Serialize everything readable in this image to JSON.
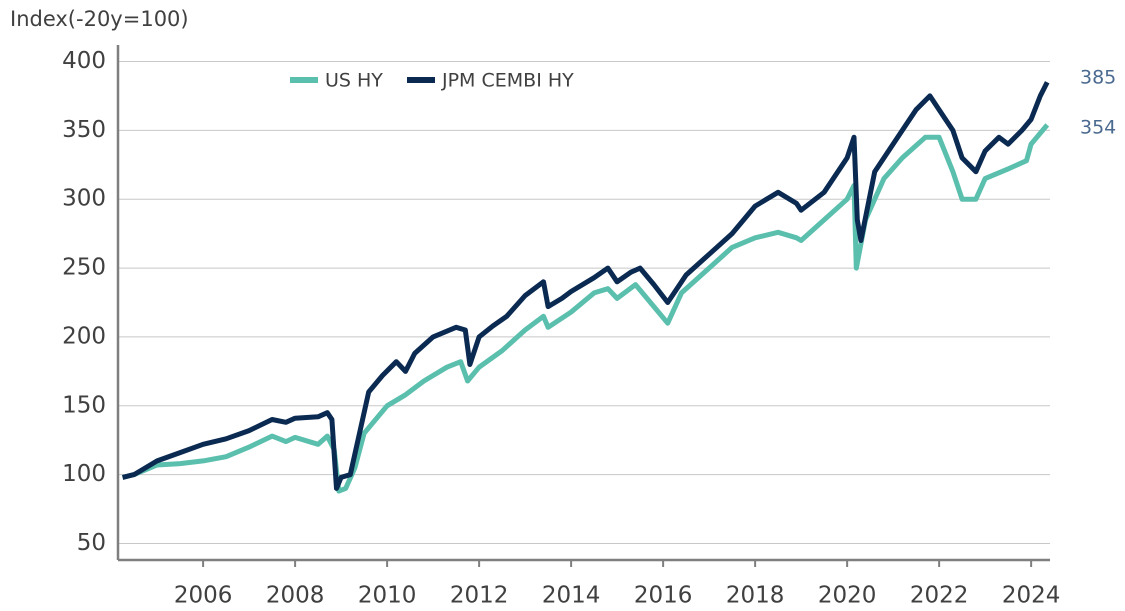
{
  "chart_data": {
    "type": "line",
    "y_label": "Index(-20y=100)",
    "annotations": [
      "385",
      "354"
    ],
    "xlim": [
      2004.15,
      2024.41
    ],
    "ylim": [
      38,
      412
    ],
    "xticks": [
      2006,
      2008,
      2010,
      2012,
      2014,
      2016,
      2018,
      2020,
      2022,
      2024
    ],
    "yticks": [
      50,
      100,
      150,
      200,
      250,
      300,
      350,
      400
    ],
    "grid": true,
    "legend": "top",
    "series": [
      {
        "name": "US HY",
        "color": "#5bbfad",
        "x": [
          2004.25,
          2004.5,
          2005.0,
          2005.5,
          2006.0,
          2006.5,
          2007.0,
          2007.5,
          2007.8,
          2008.0,
          2008.5,
          2008.7,
          2008.85,
          2008.95,
          2009.1,
          2009.3,
          2009.5,
          2010.0,
          2010.4,
          2010.8,
          2011.3,
          2011.6,
          2011.75,
          2012.0,
          2012.5,
          2013.0,
          2013.4,
          2013.5,
          2014.0,
          2014.5,
          2014.8,
          2015.0,
          2015.4,
          2015.8,
          2016.1,
          2016.4,
          2017.0,
          2017.5,
          2018.0,
          2018.5,
          2018.9,
          2019.0,
          2019.5,
          2020.0,
          2020.15,
          2020.2,
          2020.4,
          2020.8,
          2021.2,
          2021.7,
          2022.0,
          2022.3,
          2022.5,
          2022.8,
          2023.0,
          2023.5,
          2023.9,
          2024.0,
          2024.35
        ],
        "values": [
          98,
          100,
          107,
          108,
          110,
          113,
          120,
          128,
          124,
          127,
          122,
          128,
          118,
          88,
          90,
          105,
          130,
          150,
          158,
          168,
          178,
          182,
          168,
          178,
          190,
          205,
          215,
          207,
          218,
          232,
          235,
          228,
          238,
          222,
          210,
          232,
          250,
          265,
          272,
          276,
          272,
          270,
          285,
          300,
          310,
          250,
          285,
          315,
          330,
          345,
          345,
          320,
          300,
          300,
          315,
          322,
          328,
          340,
          354
        ]
      },
      {
        "name": "JPM CEMBI HY",
        "color": "#0b2a52",
        "x": [
          2004.25,
          2004.5,
          2005.0,
          2005.5,
          2006.0,
          2006.5,
          2007.0,
          2007.5,
          2007.8,
          2008.0,
          2008.5,
          2008.7,
          2008.8,
          2008.9,
          2009.0,
          2009.2,
          2009.4,
          2009.6,
          2009.9,
          2010.2,
          2010.4,
          2010.6,
          2011.0,
          2011.5,
          2011.7,
          2011.8,
          2012.0,
          2012.3,
          2012.6,
          2013.0,
          2013.4,
          2013.5,
          2013.8,
          2014.0,
          2014.5,
          2014.8,
          2015.0,
          2015.3,
          2015.5,
          2015.8,
          2016.1,
          2016.5,
          2017.0,
          2017.5,
          2018.0,
          2018.5,
          2018.9,
          2019.0,
          2019.5,
          2020.0,
          2020.15,
          2020.22,
          2020.3,
          2020.6,
          2021.0,
          2021.5,
          2021.8,
          2022.0,
          2022.3,
          2022.5,
          2022.8,
          2023.0,
          2023.3,
          2023.5,
          2023.8,
          2024.0,
          2024.2,
          2024.35
        ],
        "values": [
          98,
          100,
          110,
          116,
          122,
          126,
          132,
          140,
          138,
          141,
          142,
          145,
          140,
          90,
          98,
          100,
          130,
          160,
          172,
          182,
          175,
          188,
          200,
          207,
          205,
          180,
          200,
          208,
          215,
          230,
          240,
          222,
          228,
          233,
          243,
          250,
          240,
          247,
          250,
          238,
          225,
          245,
          260,
          275,
          295,
          305,
          297,
          292,
          305,
          330,
          345,
          285,
          270,
          320,
          340,
          365,
          375,
          365,
          350,
          330,
          320,
          335,
          345,
          340,
          350,
          358,
          375,
          385
        ]
      }
    ]
  }
}
